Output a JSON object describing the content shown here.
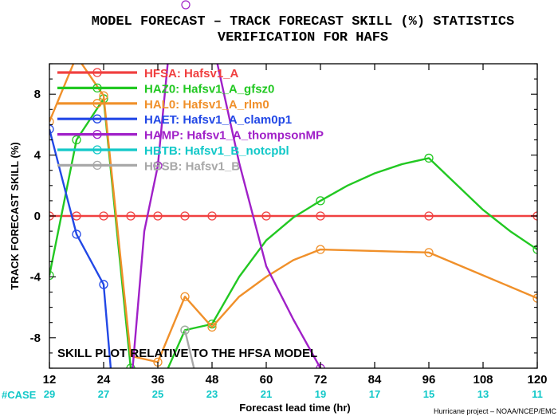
{
  "header": {
    "title": "MODEL FORECAST – TRACK FORECAST SKILL (%) STATISTICS",
    "subtitle": "VERIFICATION FOR HAFS"
  },
  "note": "SKILL PLOT RELATIVE TO THE HFSA MODEL",
  "case_label": "#CASE",
  "credit": "Hurricane project – NOAA/NCEP/EMC",
  "chart_data": {
    "type": "line",
    "title": "MODEL FORECAST – TRACK FORECAST SKILL (%) STATISTICS",
    "subtitle": "VERIFICATION FOR HAFS",
    "xlabel": "Forecast lead time (hr)",
    "ylabel": "TRACK FORECAST SKILL (%)",
    "xlim": [
      12,
      120
    ],
    "ylim": [
      -10,
      10
    ],
    "xticks": [
      12,
      24,
      36,
      48,
      60,
      72,
      84,
      96,
      108,
      120
    ],
    "yticks": [
      -8,
      -4,
      0,
      4,
      8
    ],
    "grid": false,
    "legend_position": "top-left",
    "reference_line": {
      "y": 0,
      "color": "#8b1a1a"
    },
    "cases": {
      "x": [
        12,
        24,
        36,
        48,
        60,
        72,
        84,
        96,
        108,
        120
      ],
      "counts": [
        "29",
        "27",
        "25",
        "23",
        "21",
        "19",
        "17",
        "15",
        "13",
        "11"
      ]
    },
    "series": [
      {
        "name": "HFSA:",
        "desc": "Hafsv1_A",
        "color": "#f04040",
        "points": [
          [
            12,
            0
          ],
          [
            18,
            0
          ],
          [
            24,
            0
          ],
          [
            30,
            0
          ],
          [
            36,
            0
          ],
          [
            42,
            0
          ],
          [
            48,
            0
          ],
          [
            60,
            0
          ],
          [
            72,
            0
          ],
          [
            96,
            0
          ],
          [
            120,
            0
          ]
        ],
        "markers": [
          12,
          18,
          24,
          30,
          36,
          42,
          48,
          60,
          72,
          96,
          120
        ]
      },
      {
        "name": "HAZ0:",
        "desc": "Hafsv1_A_gfsz0",
        "color": "#22c822",
        "points": [
          [
            12,
            -3.9
          ],
          [
            18,
            5.0
          ],
          [
            24,
            7.7
          ],
          [
            30,
            -10.0
          ],
          [
            36,
            -11.5
          ],
          [
            42,
            -7.5
          ],
          [
            48,
            -7.1
          ],
          [
            54,
            -4.0
          ],
          [
            60,
            -1.6
          ],
          [
            66,
            -0.1
          ],
          [
            72,
            1.0
          ],
          [
            78,
            2.0
          ],
          [
            84,
            2.8
          ],
          [
            90,
            3.4
          ],
          [
            96,
            3.8
          ],
          [
            102,
            2.1
          ],
          [
            108,
            0.4
          ],
          [
            114,
            -1.0
          ],
          [
            120,
            -2.2
          ]
        ],
        "markers": [
          12,
          18,
          24,
          30,
          42,
          48,
          72,
          96,
          120
        ]
      },
      {
        "name": "HAL0:",
        "desc": "Hafsv1_A_rlm0",
        "color": "#f0902a",
        "points": [
          [
            12,
            6.2
          ],
          [
            18,
            10.5
          ],
          [
            24,
            7.9
          ],
          [
            30,
            -9.2
          ],
          [
            36,
            -9.6
          ],
          [
            42,
            -5.3
          ],
          [
            48,
            -7.3
          ],
          [
            54,
            -5.3
          ],
          [
            60,
            -4.0
          ],
          [
            66,
            -2.9
          ],
          [
            72,
            -2.2
          ],
          [
            84,
            -2.3
          ],
          [
            96,
            -2.4
          ],
          [
            108,
            -3.9
          ],
          [
            120,
            -5.4
          ]
        ],
        "markers": [
          12,
          24,
          36,
          42,
          48,
          72,
          96,
          120
        ]
      },
      {
        "name": "HAET:",
        "desc": "Hafsv1_A_clam0p1",
        "color": "#2248e6",
        "points": [
          [
            12,
            5.7
          ],
          [
            18,
            -1.2
          ],
          [
            24,
            -4.5
          ],
          [
            26,
            -11.5
          ]
        ],
        "markers": [
          12,
          18,
          24
        ]
      },
      {
        "name": "HAMP:",
        "desc": "Hafsv1_A_thompsonMP",
        "color": "#a020c8",
        "points": [
          [
            30,
            -11.5
          ],
          [
            33,
            -1.0
          ],
          [
            36,
            3.3
          ],
          [
            39,
            12.5
          ],
          [
            42,
            14.0
          ],
          [
            48,
            11.6
          ],
          [
            54,
            3.5
          ],
          [
            60,
            -3.3
          ],
          [
            66,
            -6.8
          ],
          [
            72,
            -10.0
          ]
        ],
        "markers": [
          36,
          72
        ]
      },
      {
        "name": "HBTB:",
        "desc": "Hafsv1_B_notcpbl",
        "color": "#12c8c8",
        "points": [],
        "markers": []
      },
      {
        "name": "HBSB:",
        "desc": "Hafsv1_B",
        "color": "#a8a8a8",
        "points": [
          [
            42,
            -7.5
          ],
          [
            44,
            -10.0
          ]
        ],
        "markers": [
          42
        ]
      }
    ]
  }
}
